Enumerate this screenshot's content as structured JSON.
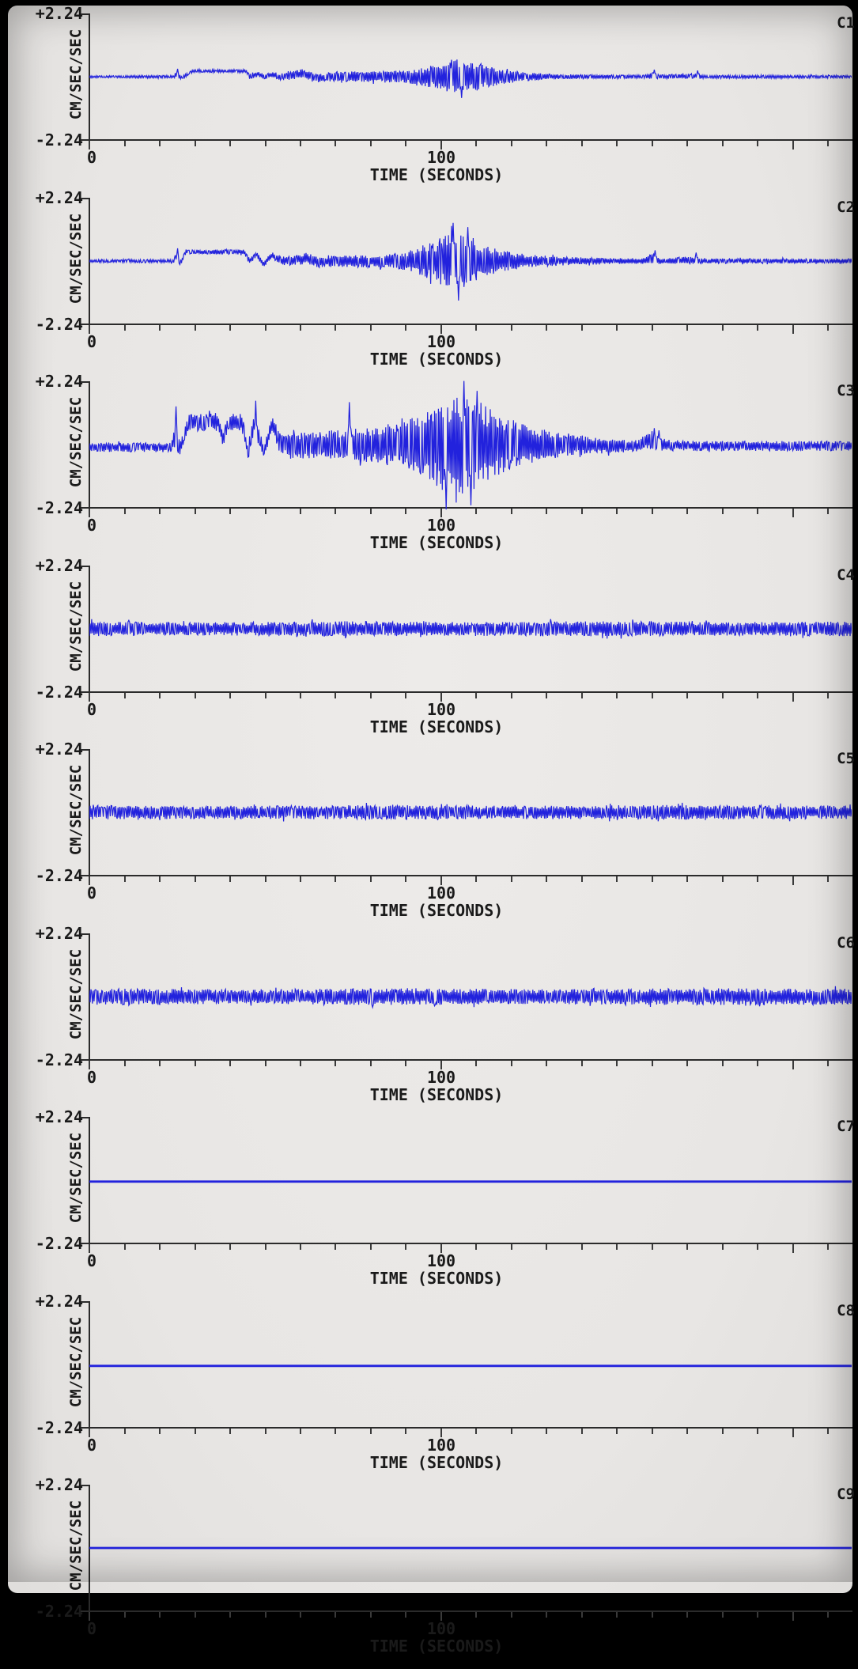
{
  "page": {
    "background_color": "#e8e6e4",
    "frame_color": "#000000",
    "trace_color": "#2222dd",
    "axis_color": "#2b2b2b",
    "text_color": "#1a1a1a"
  },
  "axis": {
    "y_max_label": "+2.24",
    "y_min_label": "-2.24",
    "y_axis_title": "CM/SEC/SEC",
    "x_axis_title": "TIME (SECONDS)",
    "x_tick_labels": [
      "0",
      "100"
    ],
    "minor_tick_interval_seconds": 10,
    "major_tick_seconds": [
      0,
      100,
      200
    ]
  },
  "chart_data": {
    "type": "line",
    "title": "",
    "xlabel": "TIME (SECONDS)",
    "ylabel": "CM/SEC/SEC",
    "xlim": [
      0,
      216.7
    ],
    "ylim": [
      -2.24,
      2.24
    ],
    "grid": false,
    "n_channels": 9,
    "channels": [
      {
        "label": "C1",
        "kind": "noise",
        "seed": 101,
        "envelope": [
          [
            0,
            0,
            0.04
          ],
          [
            24,
            0,
            0.05
          ],
          [
            24.8,
            0.12,
            0.15
          ],
          [
            26,
            -0.04,
            0.07
          ],
          [
            29.5,
            0.2,
            0.05
          ],
          [
            44.5,
            0.2,
            0.06
          ],
          [
            45.5,
            0.02,
            0.1
          ],
          [
            48,
            0.1,
            0.1
          ],
          [
            50,
            -0.02,
            0.1
          ],
          [
            52,
            0.08,
            0.1
          ],
          [
            54,
            0,
            0.12
          ],
          [
            58,
            0.05,
            0.16
          ],
          [
            61,
            0.1,
            0.18
          ],
          [
            64,
            -0.05,
            0.15
          ],
          [
            70,
            0,
            0.18
          ],
          [
            90,
            0,
            0.22
          ],
          [
            96,
            0,
            0.35
          ],
          [
            101,
            0,
            0.55
          ],
          [
            106,
            0,
            0.65
          ],
          [
            110,
            0,
            0.5
          ],
          [
            116,
            0,
            0.3
          ],
          [
            122,
            0,
            0.18
          ],
          [
            130,
            0,
            0.1
          ],
          [
            145,
            0,
            0.07
          ],
          [
            158,
            0,
            0.06
          ],
          [
            160,
            0.06,
            0.14
          ],
          [
            162,
            0,
            0.07
          ],
          [
            172,
            0.02,
            0.1
          ],
          [
            175,
            0,
            0.06
          ],
          [
            216.7,
            0,
            0.05
          ]
        ],
        "spikes": [
          [
            25,
            0.28
          ],
          [
            103,
            0.6
          ],
          [
            105.8,
            -0.75
          ],
          [
            160.5,
            0.25
          ],
          [
            173,
            0.22
          ]
        ]
      },
      {
        "label": "C2",
        "kind": "noise",
        "seed": 202,
        "envelope": [
          [
            0,
            0,
            0.05
          ],
          [
            24,
            0,
            0.06
          ],
          [
            24.8,
            0.18,
            0.2
          ],
          [
            26,
            -0.05,
            0.09
          ],
          [
            27.5,
            0.32,
            0.08
          ],
          [
            44,
            0.32,
            0.09
          ],
          [
            45.5,
            0,
            0.12
          ],
          [
            47.5,
            0.25,
            0.1
          ],
          [
            49.5,
            -0.1,
            0.12
          ],
          [
            52,
            0.2,
            0.12
          ],
          [
            54.5,
            0,
            0.15
          ],
          [
            58,
            0.03,
            0.18
          ],
          [
            62,
            0.1,
            0.2
          ],
          [
            65,
            -0.05,
            0.18
          ],
          [
            70,
            0,
            0.2
          ],
          [
            85,
            0,
            0.25
          ],
          [
            92,
            0,
            0.4
          ],
          [
            98,
            0,
            0.7
          ],
          [
            102,
            0,
            1.0
          ],
          [
            106,
            0,
            1.05
          ],
          [
            110,
            0,
            0.75
          ],
          [
            115,
            0,
            0.45
          ],
          [
            121,
            0,
            0.3
          ],
          [
            128,
            0,
            0.2
          ],
          [
            140,
            0,
            0.13
          ],
          [
            158,
            0,
            0.1
          ],
          [
            160,
            0.1,
            0.2
          ],
          [
            162.5,
            0,
            0.1
          ],
          [
            171,
            0.03,
            0.13
          ],
          [
            175,
            0,
            0.09
          ],
          [
            216.7,
            0,
            0.08
          ]
        ],
        "spikes": [
          [
            25,
            0.45
          ],
          [
            103.5,
            1.35
          ],
          [
            105,
            -1.4
          ],
          [
            107.5,
            1.2
          ],
          [
            160.8,
            0.38
          ],
          [
            172.5,
            0.3
          ]
        ]
      },
      {
        "label": "C3",
        "kind": "noise",
        "seed": 303,
        "envelope": [
          [
            0,
            -0.1,
            0.16
          ],
          [
            23.5,
            -0.1,
            0.17
          ],
          [
            24.3,
            0.4,
            0.6
          ],
          [
            25.8,
            -0.15,
            0.22
          ],
          [
            28,
            0.78,
            0.3
          ],
          [
            36.5,
            0.8,
            0.32
          ],
          [
            38,
            0.15,
            0.25
          ],
          [
            39.5,
            0.78,
            0.3
          ],
          [
            43.5,
            0.78,
            0.32
          ],
          [
            45,
            -0.25,
            0.25
          ],
          [
            47,
            0.78,
            0.32
          ],
          [
            49.5,
            -0.28,
            0.22
          ],
          [
            52,
            0.72,
            0.3
          ],
          [
            54.5,
            0,
            0.38
          ],
          [
            58,
            -0.05,
            0.45
          ],
          [
            68,
            0,
            0.5
          ],
          [
            78,
            0,
            0.6
          ],
          [
            88,
            0,
            0.8
          ],
          [
            95,
            0,
            1.1
          ],
          [
            100,
            0,
            1.6
          ],
          [
            104,
            0,
            1.75
          ],
          [
            108,
            0,
            1.85
          ],
          [
            111,
            0,
            1.55
          ],
          [
            115,
            0,
            1.15
          ],
          [
            120,
            0,
            0.85
          ],
          [
            127,
            0,
            0.6
          ],
          [
            136,
            0,
            0.42
          ],
          [
            145,
            -0.05,
            0.28
          ],
          [
            156,
            -0.05,
            0.2
          ],
          [
            158.5,
            0.15,
            0.32
          ],
          [
            163,
            0,
            0.22
          ],
          [
            170,
            -0.05,
            0.18
          ],
          [
            216.7,
            -0.05,
            0.17
          ]
        ],
        "spikes": [
          [
            24.6,
            1.35
          ],
          [
            47.3,
            1.55
          ],
          [
            74,
            1.5
          ],
          [
            101.5,
            -2.3
          ],
          [
            106.5,
            2.25
          ],
          [
            108.5,
            -2.15
          ],
          [
            110.2,
            1.9
          ],
          [
            160.5,
            0.58
          ],
          [
            162,
            0.5
          ]
        ]
      },
      {
        "label": "C4",
        "kind": "noise",
        "seed": 404,
        "envelope": [
          [
            0,
            0,
            0.26
          ],
          [
            35,
            0,
            0.23
          ],
          [
            70,
            0,
            0.27
          ],
          [
            105,
            0,
            0.24
          ],
          [
            140,
            0,
            0.27
          ],
          [
            175,
            0,
            0.24
          ],
          [
            216.7,
            0,
            0.26
          ]
        ],
        "spikes": []
      },
      {
        "label": "C5",
        "kind": "noise",
        "seed": 505,
        "envelope": [
          [
            0,
            0,
            0.25
          ],
          [
            40,
            0,
            0.23
          ],
          [
            80,
            0,
            0.26
          ],
          [
            120,
            0,
            0.23
          ],
          [
            160,
            0,
            0.26
          ],
          [
            216.7,
            0,
            0.24
          ]
        ],
        "spikes": []
      },
      {
        "label": "C6",
        "kind": "noise",
        "seed": 606,
        "envelope": [
          [
            0,
            0,
            0.29
          ],
          [
            45,
            0,
            0.26
          ],
          [
            90,
            0,
            0.3
          ],
          [
            135,
            0,
            0.27
          ],
          [
            180,
            0,
            0.3
          ],
          [
            216.7,
            0,
            0.28
          ]
        ],
        "spikes": []
      },
      {
        "label": "C7",
        "kind": "flat",
        "value": -0.05
      },
      {
        "label": "C8",
        "kind": "flat",
        "value": -0.05
      },
      {
        "label": "C9",
        "kind": "flat",
        "value": 0.0
      }
    ]
  }
}
